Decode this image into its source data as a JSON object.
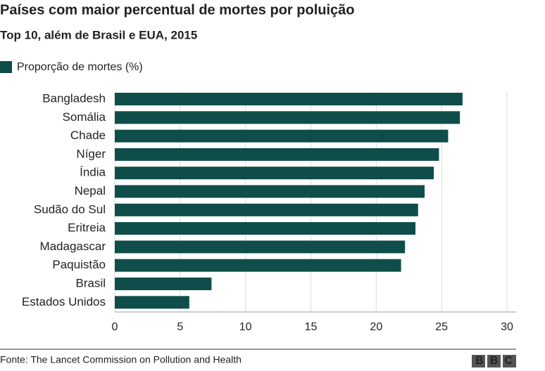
{
  "chart_data": {
    "type": "bar",
    "orientation": "horizontal",
    "title": "Países com maior percentual de mortes por poluição",
    "subtitle": "Top 10, além de Brasil e EUA, 2015",
    "categories": [
      "Bangladesh",
      "Somália",
      "Chade",
      "Níger",
      "Índia",
      "Nepal",
      "Sudão do Sul",
      "Eritreia",
      "Madagascar",
      "Paquistão",
      "Brasil",
      "Estados Unidos"
    ],
    "series": [
      {
        "name": "Proporção de mortes (%)",
        "color": "#0f4d4a",
        "values": [
          26.6,
          26.4,
          25.5,
          24.8,
          24.4,
          23.7,
          23.2,
          23.0,
          22.2,
          21.9,
          7.4,
          5.7
        ]
      }
    ],
    "xlim": [
      0,
      30
    ],
    "xticks": [
      0,
      5,
      10,
      15,
      20,
      25,
      30
    ],
    "grid": true,
    "source": "Fonte: The Lancet Commission on Pollution and Health",
    "logo": "BBC"
  }
}
